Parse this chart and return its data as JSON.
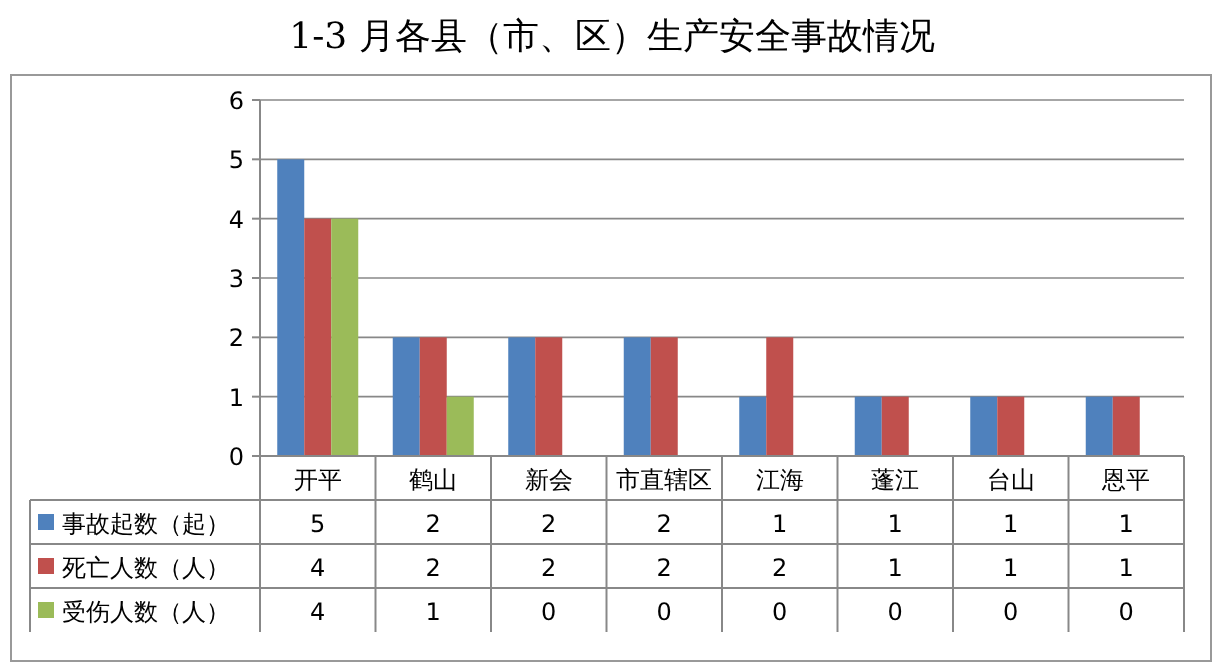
{
  "chart_data": {
    "type": "bar",
    "title": "1-3 月各县（市、区）生产安全事故情况",
    "categories": [
      "开平",
      "鹤山",
      "新会",
      "市直辖区",
      "江海",
      "蓬江",
      "台山",
      "恩平"
    ],
    "series": [
      {
        "name": "事故起数（起）",
        "color": "#4f81bd",
        "values": [
          5,
          2,
          2,
          2,
          1,
          1,
          1,
          1
        ]
      },
      {
        "name": "死亡人数（人）",
        "color": "#c0504d",
        "values": [
          4,
          2,
          2,
          2,
          2,
          1,
          1,
          1
        ]
      },
      {
        "name": "受伤人数（人）",
        "color": "#9bbb59",
        "values": [
          4,
          1,
          0,
          0,
          0,
          0,
          0,
          0
        ]
      }
    ],
    "ylim": [
      0,
      6
    ],
    "yticks": [
      0,
      1,
      2,
      3,
      4,
      5,
      6
    ],
    "grid": "y",
    "data_labels": true,
    "legend": "bottom"
  }
}
